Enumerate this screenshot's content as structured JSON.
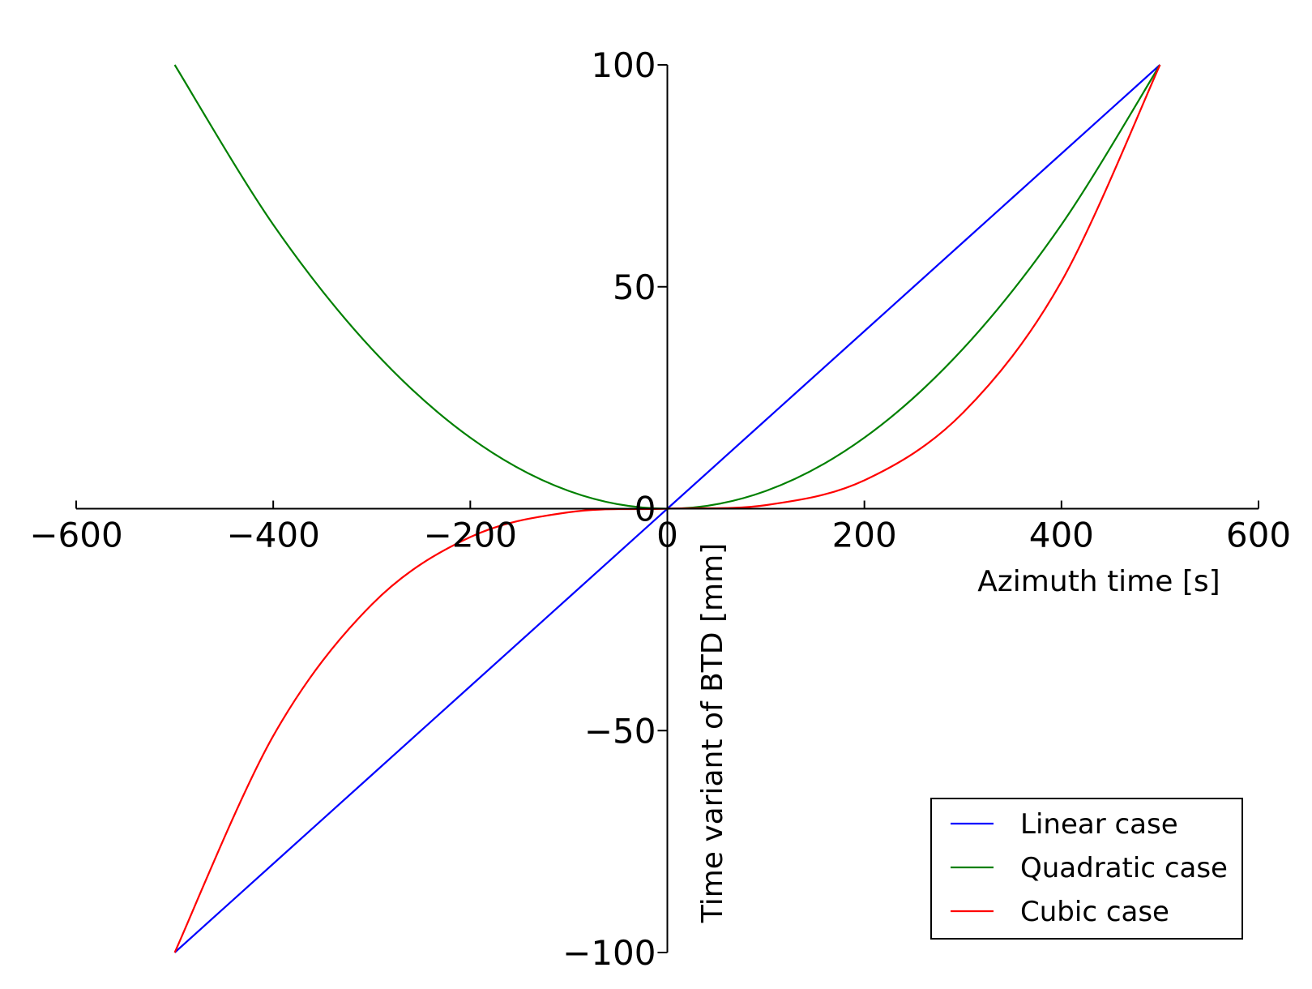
{
  "chart_data": {
    "type": "line",
    "xlabel": "Azimuth time [s]",
    "ylabel": "Time variant of BTD [mm]",
    "xlim": [
      -600,
      600
    ],
    "ylim": [
      -100,
      100
    ],
    "x_ticks": [
      -600,
      -400,
      -200,
      0,
      200,
      400,
      600
    ],
    "x_tick_labels": [
      "−600",
      "−400",
      "−200",
      "0",
      "200",
      "400",
      "600"
    ],
    "y_ticks": [
      -100,
      -50,
      0,
      50,
      100
    ],
    "y_tick_labels": [
      "−100",
      "−50",
      "0",
      "50",
      "100"
    ],
    "spines": "centered at origin",
    "grid": false,
    "legend_position": "lower-right",
    "x": [
      -500,
      -400,
      -300,
      -200,
      -100,
      0,
      100,
      200,
      300,
      400,
      500
    ],
    "series": [
      {
        "name": "Linear case",
        "color": "#0000ff",
        "values": [
          -100,
          -80,
          -60,
          -40,
          -20,
          0,
          20,
          40,
          60,
          80,
          100
        ]
      },
      {
        "name": "Quadratic case",
        "color": "#008000",
        "values": [
          100,
          64,
          36,
          16,
          4,
          0,
          4,
          16,
          36,
          64,
          100
        ]
      },
      {
        "name": "Cubic case",
        "color": "#ff0000",
        "values": [
          -100,
          -51.2,
          -21.6,
          -6.4,
          -0.8,
          0,
          0.8,
          6.4,
          21.6,
          51.2,
          100
        ]
      }
    ]
  }
}
